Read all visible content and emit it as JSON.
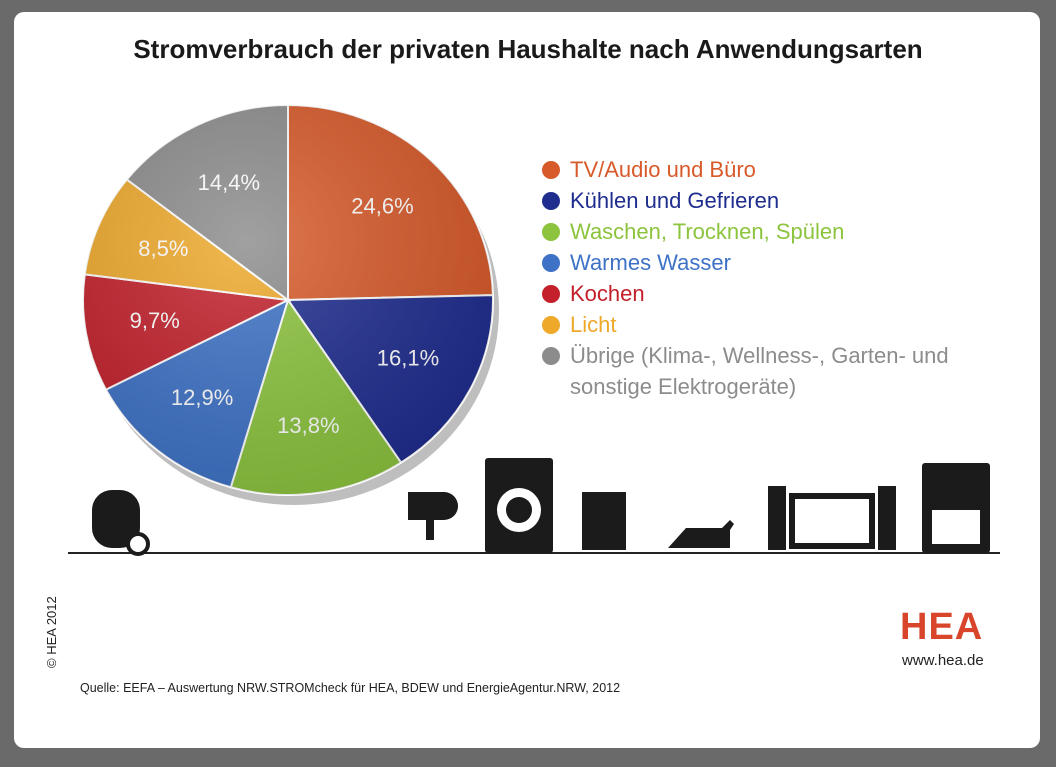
{
  "chart_data": {
    "type": "pie",
    "title": "Stromverbrauch der privaten Haushalte nach Anwendungsarten",
    "categories": [
      "TV/Audio und Büro",
      "Kühlen und Gefrieren",
      "Waschen, Trocknen, Spülen",
      "Warmes Wasser",
      "Kochen",
      "Licht",
      "Übrige (Klima-, Wellness-, Garten- und sonstige Elektrogeräte)"
    ],
    "values": [
      24.6,
      16.1,
      13.8,
      12.9,
      9.7,
      8.5,
      14.4
    ],
    "value_labels": [
      "24,6%",
      "16,1%",
      "13,8%",
      "12,9%",
      "9,7%",
      "8,5%",
      "14,4%"
    ],
    "colors": [
      "#d85a2a",
      "#1f2d8f",
      "#8cc43e",
      "#3d72c6",
      "#c3202b",
      "#eea92b",
      "#8c8c8c"
    ]
  },
  "copyright": "© HEA 2012",
  "logo": "HEA",
  "website": "www.hea.de",
  "source": "Quelle: EEFA – Auswertung NRW.STROMcheck für HEA, BDEW und EnergieAgentur.NRW, 2012"
}
